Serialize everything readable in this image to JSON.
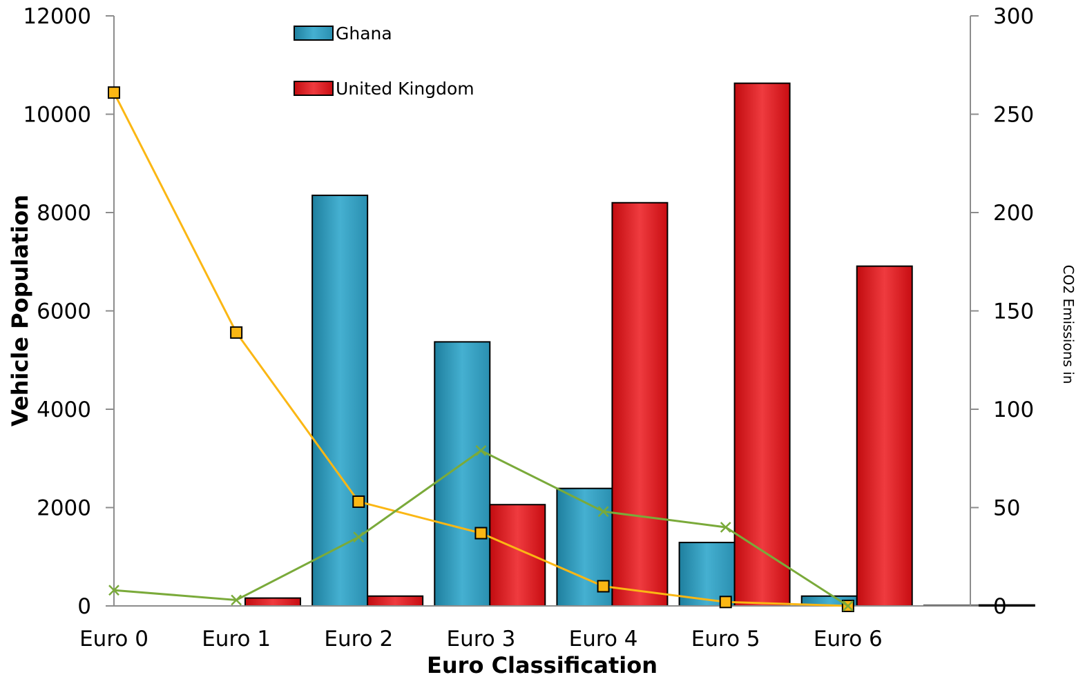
{
  "chart_data": {
    "type": "bar",
    "categories": [
      "Euro 0",
      "Euro 1",
      "Euro 2",
      "Euro 3",
      "Euro 4",
      "Euro 5",
      "Euro 6"
    ],
    "xlabel": "Euro Classification",
    "ylabel": "Vehicle Population",
    "y2label": "CO2 Emissions in",
    "ylim": [
      0,
      12000
    ],
    "y2lim": [
      0,
      300
    ],
    "yticks": [
      "0",
      "2000",
      "4000",
      "6000",
      "8000",
      "10000",
      "12000"
    ],
    "y2ticks": [
      "0",
      "50",
      "100",
      "150",
      "200",
      "250",
      "300"
    ],
    "grid": false,
    "legend_position": "top-center",
    "series": [
      {
        "name": "Ghana",
        "axis": "left",
        "kind": "bar",
        "color": "#2e9cbf",
        "values": [
          0,
          8350,
          5370,
          2390,
          1290,
          200,
          10
        ]
      },
      {
        "name": "United Kingdom",
        "axis": "left",
        "kind": "bar",
        "color": "#e0242b",
        "values": [
          160,
          200,
          2060,
          8200,
          10630,
          6910,
          20
        ]
      },
      {
        "axis": "right",
        "kind": "line",
        "color": "#fbb714",
        "marker": "square",
        "values": [
          261,
          139,
          53,
          37,
          10,
          2,
          0
        ]
      },
      {
        "axis": "right",
        "kind": "line",
        "color": "#7aaa3a",
        "marker": "x",
        "values": [
          8,
          3,
          35,
          79,
          48,
          40,
          0
        ]
      }
    ]
  }
}
